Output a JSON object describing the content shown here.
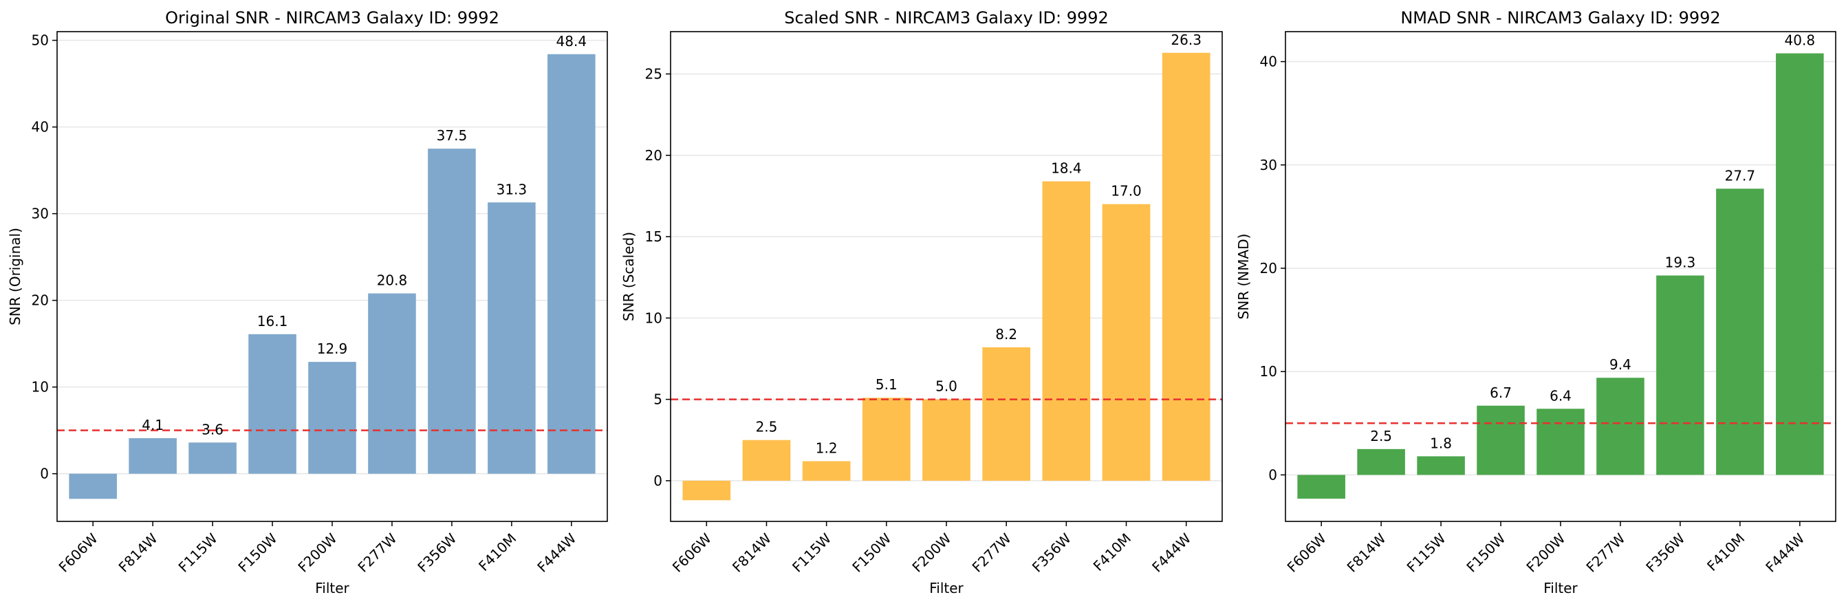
{
  "chart_data": [
    {
      "type": "bar",
      "title": "Original SNR - NIRCAM3 Galaxy ID: 9992",
      "xlabel": "Filter",
      "ylabel": "SNR (Original)",
      "categories": [
        "F606W",
        "F814W",
        "F115W",
        "F150W",
        "F200W",
        "F277W",
        "F356W",
        "F410M",
        "F444W"
      ],
      "values": [
        -2.9,
        4.1,
        3.6,
        16.1,
        12.9,
        20.8,
        37.5,
        31.3,
        48.4
      ],
      "data_labels": [
        "",
        "4.1",
        "3.6",
        "16.1",
        "12.9",
        "20.8",
        "37.5",
        "31.3",
        "48.4"
      ],
      "ylim": [
        -5.5,
        51.0
      ],
      "yticks": [
        0,
        10,
        20,
        30,
        40,
        50
      ],
      "threshold": 5,
      "color": "#7fa8cc",
      "threshold_color": "#e8312f",
      "grid": true
    },
    {
      "type": "bar",
      "title": "Scaled SNR - NIRCAM3 Galaxy ID: 9992",
      "xlabel": "Filter",
      "ylabel": "SNR (Scaled)",
      "categories": [
        "F606W",
        "F814W",
        "F115W",
        "F150W",
        "F200W",
        "F277W",
        "F356W",
        "F410M",
        "F444W"
      ],
      "values": [
        -1.2,
        2.5,
        1.2,
        5.1,
        5.0,
        8.2,
        18.4,
        17.0,
        26.3
      ],
      "data_labels": [
        "",
        "2.5",
        "1.2",
        "5.1",
        "5.0",
        "8.2",
        "18.4",
        "17.0",
        "26.3"
      ],
      "ylim": [
        -2.5,
        27.6
      ],
      "yticks": [
        0,
        5,
        10,
        15,
        20,
        25
      ],
      "threshold": 5,
      "color": "#ffbf4d",
      "threshold_color": "#e8312f",
      "grid": true
    },
    {
      "type": "bar",
      "title": "NMAD SNR - NIRCAM3 Galaxy ID: 9992",
      "xlabel": "Filter",
      "ylabel": "SNR (NMAD)",
      "categories": [
        "F606W",
        "F814W",
        "F115W",
        "F150W",
        "F200W",
        "F277W",
        "F356W",
        "F410M",
        "F444W"
      ],
      "values": [
        -2.3,
        2.5,
        1.8,
        6.7,
        6.4,
        9.4,
        19.3,
        27.7,
        40.8
      ],
      "data_labels": [
        "",
        "2.5",
        "1.8",
        "6.7",
        "6.4",
        "9.4",
        "19.3",
        "27.7",
        "40.8"
      ],
      "ylim": [
        -4.5,
        42.9
      ],
      "yticks": [
        0,
        10,
        20,
        30,
        40
      ],
      "threshold": 5,
      "color": "#4ca64c",
      "threshold_color": "#e8312f",
      "grid": true
    }
  ]
}
